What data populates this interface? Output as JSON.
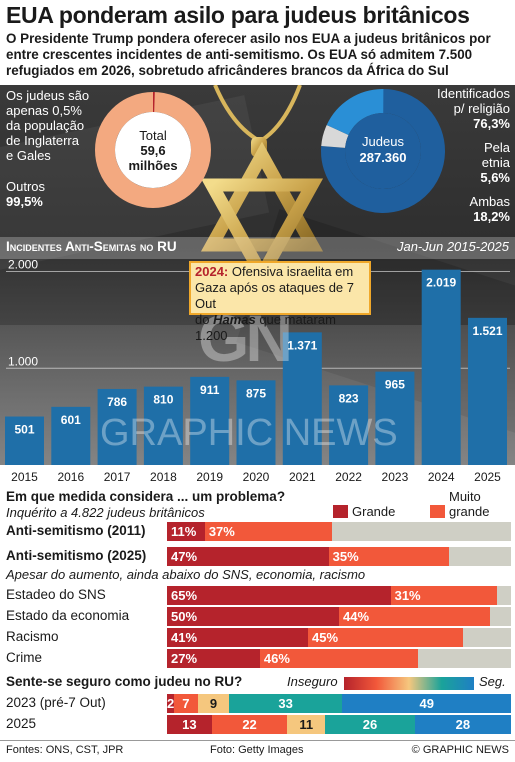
{
  "header": {
    "title": "EUA ponderam asilo para judeus britânicos",
    "subtitle": "O Presidente Trump pondera oferecer asilo nos EUA a judeus britânicos por entre crescentes incidentes de anti-semitismo. Os EUA só admitem 7.500 refugiados em 2026, sobretudo africânderes brancos da África do Sul"
  },
  "donut_left": {
    "note_line1": "Os judeus são",
    "note_line2": "apenas 0,5%",
    "note_line3": "da população",
    "note_line4": "de Inglaterra",
    "note_line5": "e Gales",
    "others_label": "Outros",
    "others_value": "99,5%",
    "center_label": "Total",
    "center_value1": "59,6",
    "center_value2": "milhões",
    "share_jews": 0.5
  },
  "donut_right": {
    "center_label": "Judeus",
    "center_value": "287.360",
    "slices": [
      {
        "label1": "Identificados",
        "label2": "p/ religião",
        "value": "76,3%",
        "pct": 76.3,
        "color": "#1f5f9e"
      },
      {
        "label1": "Pela",
        "label2": "etnia",
        "value": "5,6%",
        "pct": 5.6,
        "color": "#d8d8d8"
      },
      {
        "label1": "Ambas",
        "label2": "",
        "value": "18,2%",
        "pct": 18.2,
        "color": "#2a8fd6"
      }
    ]
  },
  "chart_data": [
    {
      "type": "bar",
      "title": "Incidentes Anti-Semitas no RU",
      "period": "Jan-Jun 2015-2025",
      "categories": [
        "2015",
        "2016",
        "2017",
        "2018",
        "2019",
        "2020",
        "2021",
        "2022",
        "2023",
        "2024",
        "2025"
      ],
      "values": [
        501,
        601,
        786,
        810,
        911,
        875,
        1371,
        823,
        965,
        2019,
        1521
      ],
      "value_labels": [
        "501",
        "601",
        "786",
        "810",
        "911",
        "875",
        "1.371",
        "823",
        "965",
        "2.019",
        "1.521"
      ],
      "y_ticks": [
        {
          "v": 1000,
          "label": "1.000"
        },
        {
          "v": 2000,
          "label": "2.000"
        }
      ],
      "ylim": [
        0,
        2150
      ],
      "bar_color": "#1f6fa8",
      "annotation": {
        "year": "2024:",
        "text1": " Ofensiva israelita em",
        "text2": "Gaza após os ataques de 7 Out",
        "text3a": "do ",
        "text3b": "Hamas",
        "text3c": " que mataram 1.200"
      }
    },
    {
      "type": "stacked_bar",
      "title": "Em que medida considera ... um problema?",
      "subtitle": "Inquérito a 4.822 judeus britânicos",
      "legend": [
        {
          "name": "Grande",
          "color": "#b5232c"
        },
        {
          "name": "Muito grande",
          "name1": "Muito",
          "name2": "grande",
          "color": "#f2583a"
        }
      ],
      "rows": [
        {
          "label": "Anti-semitismo (2011)",
          "bold": true,
          "grande": 11,
          "muito": 37,
          "grande_label": "11%",
          "muito_label": "37%"
        },
        {
          "label": "Anti-semitismo (2025)",
          "bold": true,
          "grande": 47,
          "muito": 35,
          "grande_label": "47%",
          "muito_label": "35%"
        },
        {
          "label": "Estadeo do SNS",
          "bold": false,
          "grande": 65,
          "muito": 31,
          "grande_label": "65%",
          "muito_label": "31%"
        },
        {
          "label": "Estado da economia",
          "bold": false,
          "grande": 50,
          "muito": 44,
          "grande_label": "50%",
          "muito_label": "44%"
        },
        {
          "label": "Racismo",
          "bold": false,
          "grande": 41,
          "muito": 45,
          "grande_label": "41%",
          "muito_label": "45%"
        },
        {
          "label": "Crime",
          "bold": false,
          "grande": 27,
          "muito": 46,
          "grande_label": "27%",
          "muito_label": "46%"
        }
      ],
      "note": "Apesar do aumento, ainda abaixo do SNS, economia, racismo"
    },
    {
      "type": "stacked_bar",
      "title": "Sente-se seguro como judeu no RU?",
      "scale_left": "Inseguro",
      "scale_right": "Seg.",
      "colors": [
        "#b5232c",
        "#f2583a",
        "#f5c77e",
        "#1aa39a",
        "#1f7fc4"
      ],
      "rows": [
        {
          "label": "2023 (pré-7 Out)",
          "values": [
            2,
            7,
            9,
            33,
            49
          ],
          "labels": [
            "2",
            "7",
            "9",
            "33",
            "49"
          ]
        },
        {
          "label": "2025",
          "values": [
            13,
            22,
            11,
            26,
            28
          ],
          "labels": [
            "13",
            "22",
            "11",
            "26",
            "28"
          ]
        }
      ]
    }
  ],
  "footer": {
    "sources": "Fontes: ONS, CST, JPR",
    "photo": "Foto: Getty Images",
    "credit": "© GRAPHIC NEWS"
  },
  "watermark": {
    "logo": "GN",
    "text": "GRAPHIC NEWS"
  }
}
